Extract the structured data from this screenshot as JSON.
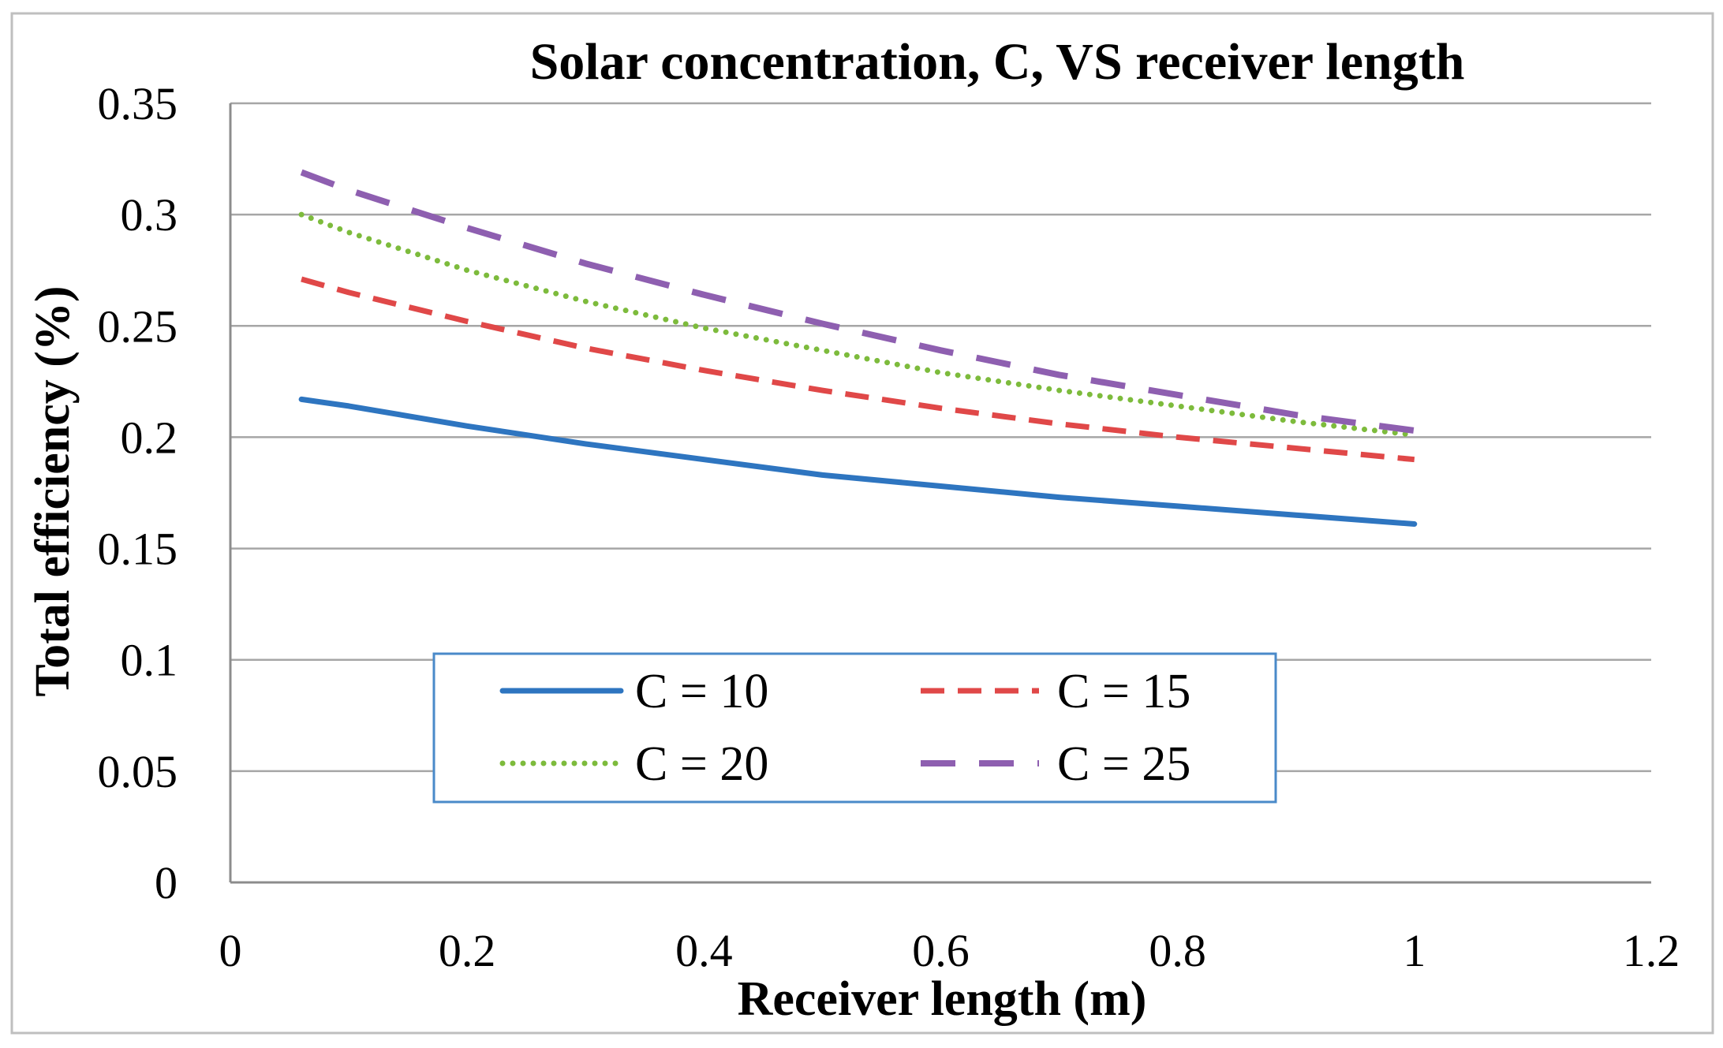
{
  "chart_data": {
    "type": "line",
    "title": "Solar concentration, C, VS receiver length",
    "xlabel": "Receiver length (m)",
    "ylabel": "Total efficiency (%)",
    "xlim": [
      0,
      1.2
    ],
    "ylim": [
      0,
      0.35
    ],
    "xticks": [
      0,
      0.2,
      0.4,
      0.6,
      0.8,
      1,
      1.2
    ],
    "xtick_labels": [
      "0",
      "0.2",
      "0.4",
      "0.6",
      "0.8",
      "1",
      "1.2"
    ],
    "yticks": [
      0,
      0.05,
      0.1,
      0.15,
      0.2,
      0.25,
      0.3,
      0.35
    ],
    "ytick_labels": [
      "0",
      "0.05",
      "0.1",
      "0.15",
      "0.2",
      "0.25",
      "0.3",
      "0.35"
    ],
    "grid": "horizontal",
    "legend_position": "lower-center",
    "x": [
      0.06,
      0.1,
      0.2,
      0.3,
      0.4,
      0.5,
      0.6,
      0.7,
      0.8,
      0.9,
      1.0
    ],
    "series": [
      {
        "name": "C = 10",
        "color": "#2e75c0",
        "style": "solid",
        "values": [
          0.217,
          0.214,
          0.205,
          0.197,
          0.19,
          0.183,
          0.178,
          0.173,
          0.169,
          0.165,
          0.161
        ]
      },
      {
        "name": "C = 15",
        "color": "#e04848",
        "style": "dashed",
        "values": [
          0.271,
          0.265,
          0.252,
          0.24,
          0.23,
          0.221,
          0.213,
          0.206,
          0.2,
          0.195,
          0.19
        ]
      },
      {
        "name": "C = 20",
        "color": "#7dbb3c",
        "style": "dotted",
        "values": [
          0.3,
          0.292,
          0.275,
          0.261,
          0.249,
          0.239,
          0.229,
          0.221,
          0.214,
          0.207,
          0.201
        ]
      },
      {
        "name": "C = 25",
        "color": "#8e5fb0",
        "style": "longdash",
        "values": [
          0.319,
          0.311,
          0.294,
          0.278,
          0.264,
          0.251,
          0.239,
          0.228,
          0.219,
          0.21,
          0.203
        ]
      }
    ]
  }
}
